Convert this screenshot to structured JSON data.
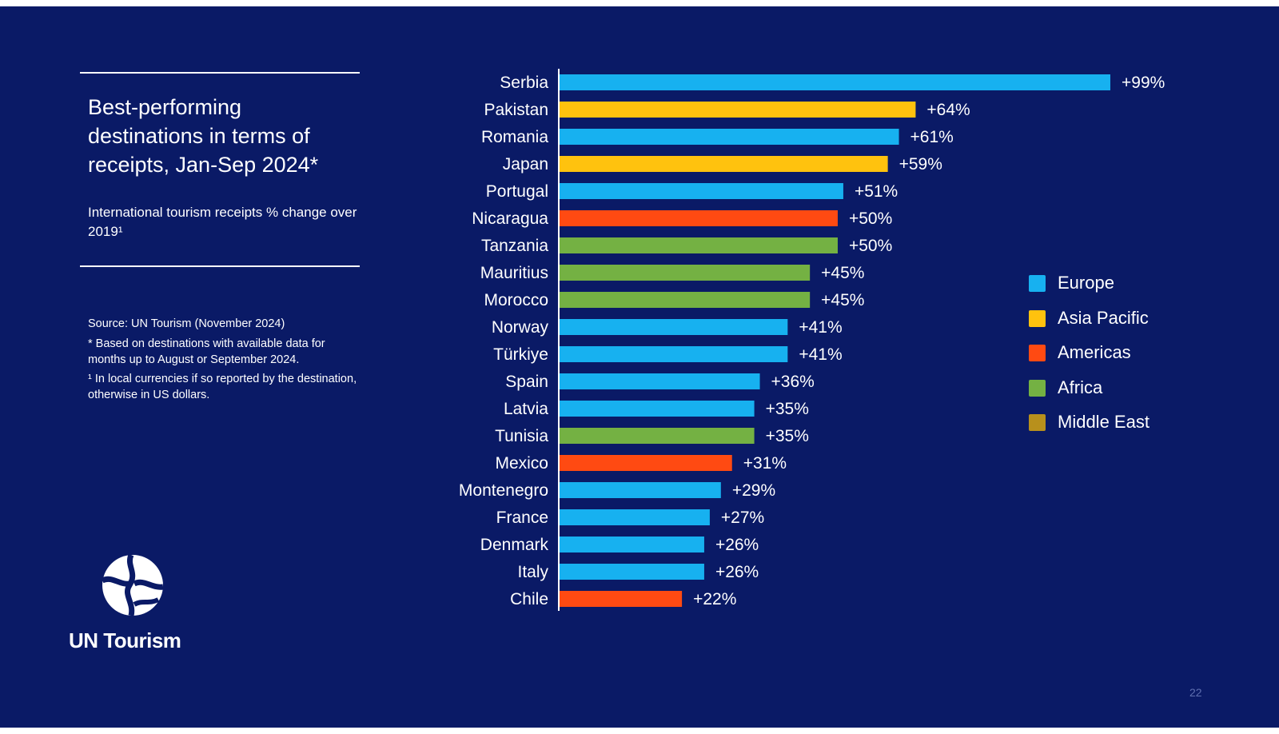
{
  "title": "Best-performing destinations in terms of receipts, Jan-Sep 2024*",
  "subtitle": "International tourism receipts % change over 2019¹",
  "source": "Source: UN Tourism (November 2024)",
  "note_asterisk": "* Based on destinations with available data for months up to August or September 2024.",
  "note_one": "¹ In local currencies if so reported by the destination, otherwise in US dollars.",
  "logo_text": "UN Tourism",
  "page_number": "22",
  "colors": {
    "background": "#0a1a66",
    "Europe": "#17b1f0",
    "Asia Pacific": "#ffc20e",
    "Americas": "#ff4a12",
    "Africa": "#74b143",
    "Middle East": "#b8901c"
  },
  "legend": [
    {
      "label": "Europe",
      "region": "Europe"
    },
    {
      "label": "Asia Pacific",
      "region": "Asia Pacific"
    },
    {
      "label": "Americas",
      "region": "Americas"
    },
    {
      "label": "Africa",
      "region": "Africa"
    },
    {
      "label": "Middle East",
      "region": "Middle East"
    }
  ],
  "chart_data": {
    "type": "bar",
    "orientation": "horizontal",
    "categories": [
      "Serbia",
      "Pakistan",
      "Romania",
      "Japan",
      "Portugal",
      "Nicaragua",
      "Tanzania",
      "Mauritius",
      "Morocco",
      "Norway",
      "Türkiye",
      "Spain",
      "Latvia",
      "Tunisia",
      "Mexico",
      "Montenegro",
      "France",
      "Denmark",
      "Italy",
      "Chile"
    ],
    "values": [
      99,
      64,
      61,
      59,
      51,
      50,
      50,
      45,
      45,
      41,
      41,
      36,
      35,
      35,
      31,
      29,
      27,
      26,
      26,
      22
    ],
    "value_labels": [
      "+99%",
      "+64%",
      "+61%",
      "+59%",
      "+51%",
      "+50%",
      "+50%",
      "+45%",
      "+45%",
      "+41%",
      "+41%",
      "+36%",
      "+35%",
      "+35%",
      "+31%",
      "+29%",
      "+27%",
      "+26%",
      "+26%",
      "+22%"
    ],
    "regions": [
      "Europe",
      "Asia Pacific",
      "Europe",
      "Asia Pacific",
      "Europe",
      "Americas",
      "Africa",
      "Africa",
      "Africa",
      "Europe",
      "Europe",
      "Europe",
      "Europe",
      "Africa",
      "Americas",
      "Europe",
      "Europe",
      "Europe",
      "Europe",
      "Americas"
    ],
    "xlim": [
      0,
      99
    ],
    "grid": false,
    "legend_position": "right"
  }
}
